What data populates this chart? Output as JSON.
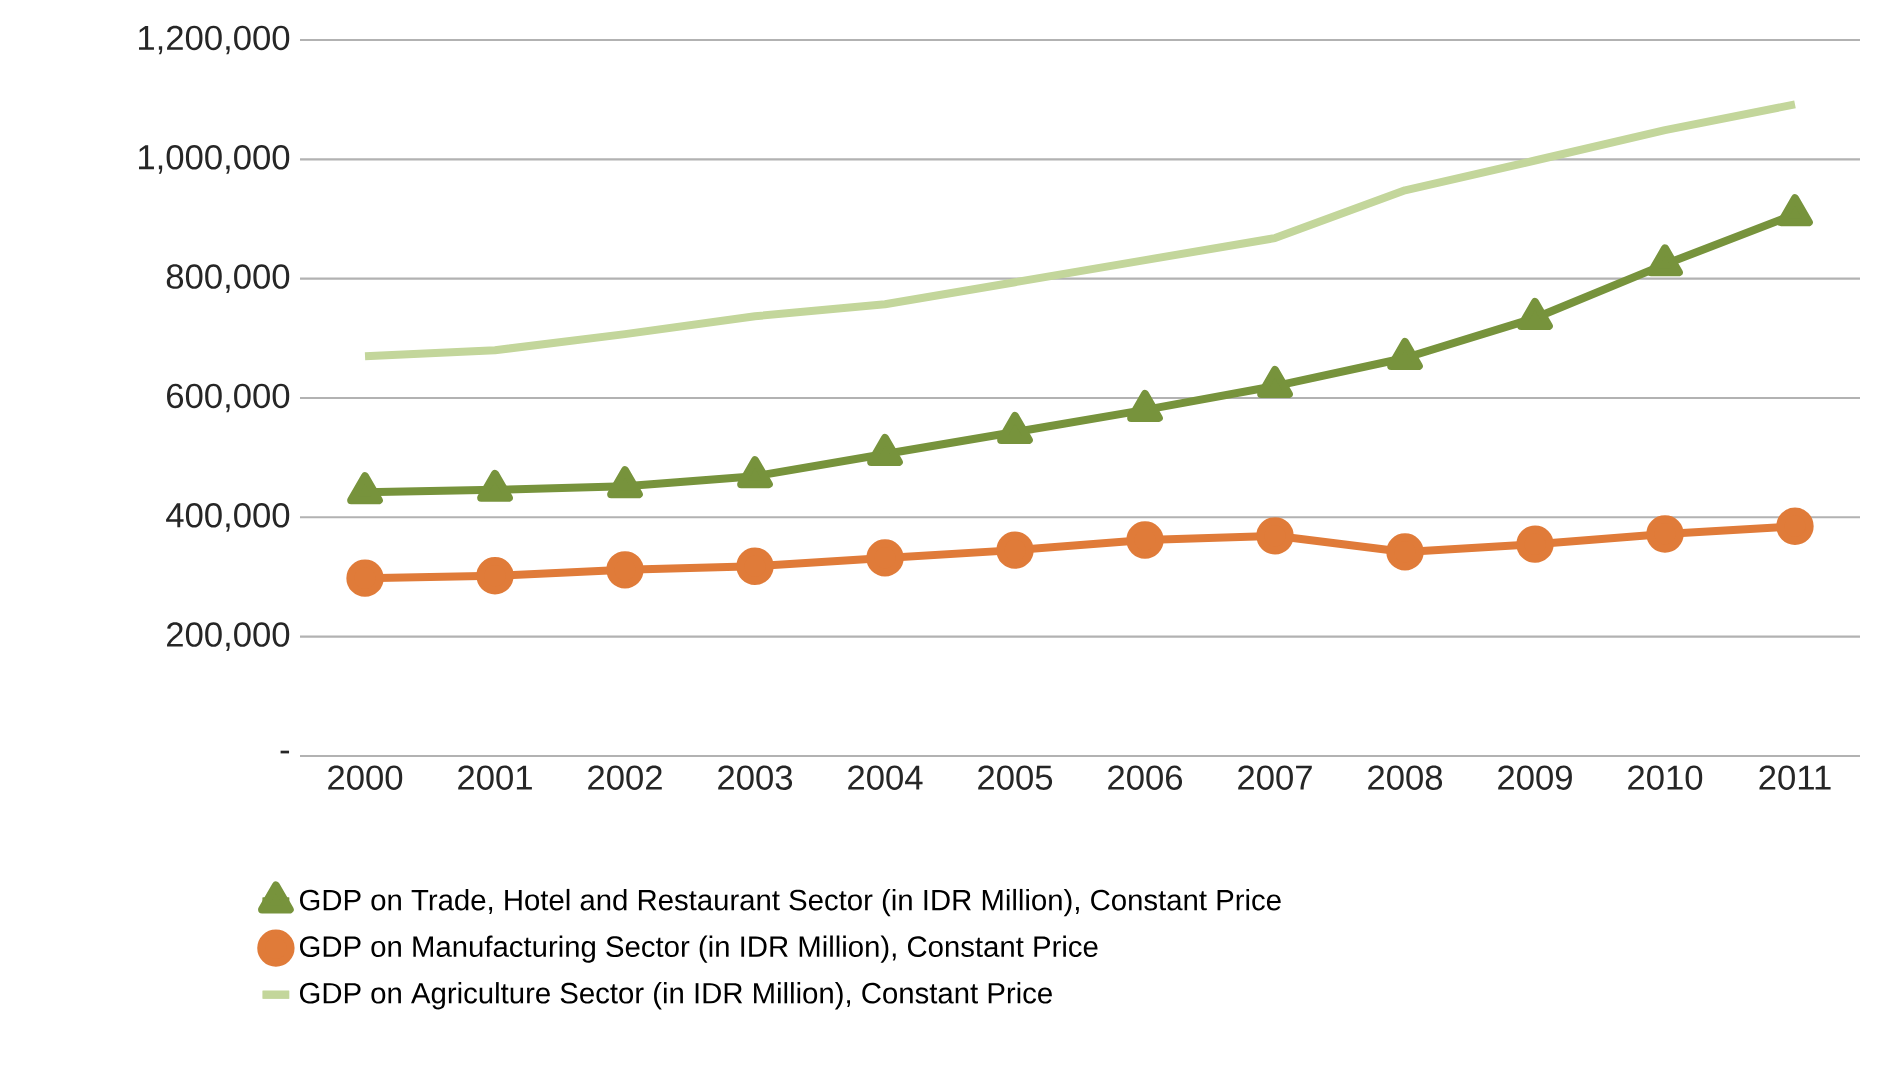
{
  "chart_data": {
    "type": "line",
    "categories": [
      "2000",
      "2001",
      "2002",
      "2003",
      "2004",
      "2005",
      "2006",
      "2007",
      "2008",
      "2009",
      "2010",
      "2011"
    ],
    "series": [
      {
        "name": "GDP on Trade, Hotel and Restaurant Sector (in IDR Million), Constant Price",
        "color": "#77933c",
        "marker": "triangle",
        "values": [
          442000,
          446000,
          452000,
          469000,
          506000,
          543000,
          580000,
          620000,
          667000,
          734000,
          824000,
          908000
        ]
      },
      {
        "name": "GDP on Manufacturing Sector (in IDR Million), Constant Price",
        "color": "#e07b39",
        "marker": "circle",
        "values": [
          298000,
          302000,
          312000,
          318000,
          332000,
          345000,
          362000,
          369000,
          342000,
          355000,
          372000,
          385000
        ]
      },
      {
        "name": "GDP on Agriculture Sector (in IDR Million), Constant Price",
        "color": "#c3d69b",
        "marker": "none",
        "values": [
          670000,
          680000,
          707000,
          737000,
          757000,
          794000,
          831000,
          868000,
          948000,
          998000,
          1049000,
          1092000
        ]
      }
    ],
    "ylim": [
      0,
      1200000
    ],
    "yticks": [
      {
        "value": 0,
        "label": "-"
      },
      {
        "value": 200000,
        "label": "200,000"
      },
      {
        "value": 400000,
        "label": "400,000"
      },
      {
        "value": 600000,
        "label": "600,000"
      },
      {
        "value": 800000,
        "label": "800,000"
      },
      {
        "value": 1000000,
        "label": "1,000,000"
      },
      {
        "value": 1200000,
        "label": "1,200,000"
      }
    ],
    "grid": "y",
    "legend": "bottom"
  }
}
